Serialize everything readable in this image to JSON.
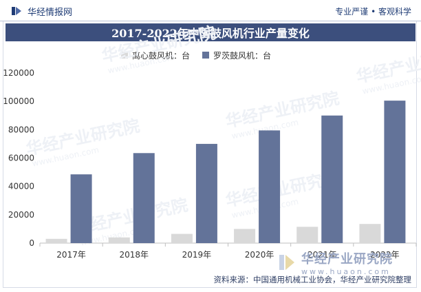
{
  "header": {
    "site_name": "华经情报网",
    "tagline": "专业严谨 • 客观科学"
  },
  "chart_data": {
    "type": "bar",
    "title": "2017-2022年中国鼓风机行业产量变化",
    "categories": [
      "2017年",
      "2018年",
      "2019年",
      "2020年",
      "2021年",
      "2022年"
    ],
    "series": [
      {
        "name": "离心鼓风机：台",
        "color": "#d9d9d9",
        "values": [
          3000,
          4000,
          6500,
          10000,
          11500,
          13500
        ]
      },
      {
        "name": "罗茨鼓风机：台",
        "color": "#637399",
        "values": [
          48500,
          63500,
          70000,
          79500,
          90000,
          100500
        ]
      }
    ],
    "yticks": [
      "0",
      "20000",
      "40000",
      "60000",
      "80000",
      "100000",
      "120000"
    ],
    "ylim": [
      0,
      120000
    ],
    "grid": false,
    "legend_position": "top"
  },
  "footer": {
    "source": "资料来源：中国通用机械工业协会，华经产业研究院整理",
    "brand_name": "华经产业研究院",
    "brand_url": "www.huaon.com"
  },
  "watermark": {
    "text": "华经产业研究院",
    "url": "www.huaon.com"
  }
}
